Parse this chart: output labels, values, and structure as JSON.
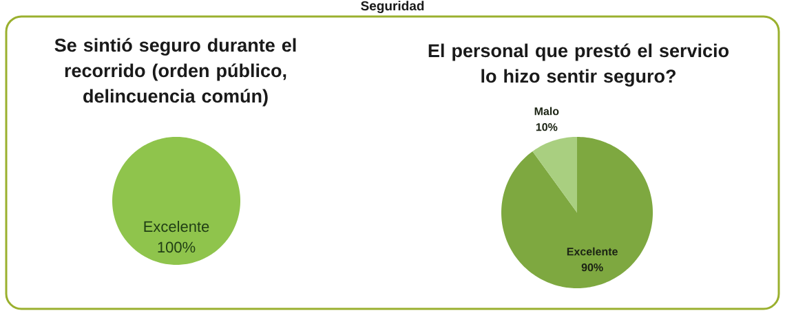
{
  "chart_data": [
    {
      "type": "other",
      "title": "Seguridad"
    },
    {
      "type": "pie",
      "title": "Se sintió seguro durante el recorrido (orden público, delincuencia común)",
      "categories": [
        "Excelente"
      ],
      "values": [
        100
      ],
      "colors": [
        "#8fc44c"
      ],
      "value_labels": [
        "100%"
      ]
    },
    {
      "type": "pie",
      "title": "El personal que prestó el servicio lo hizo sentir seguro?",
      "categories": [
        "Excelente",
        "Malo"
      ],
      "values": [
        90,
        10
      ],
      "colors": [
        "#7ea840",
        "#a9cf80"
      ],
      "value_labels": [
        "90%",
        "10%"
      ]
    }
  ]
}
